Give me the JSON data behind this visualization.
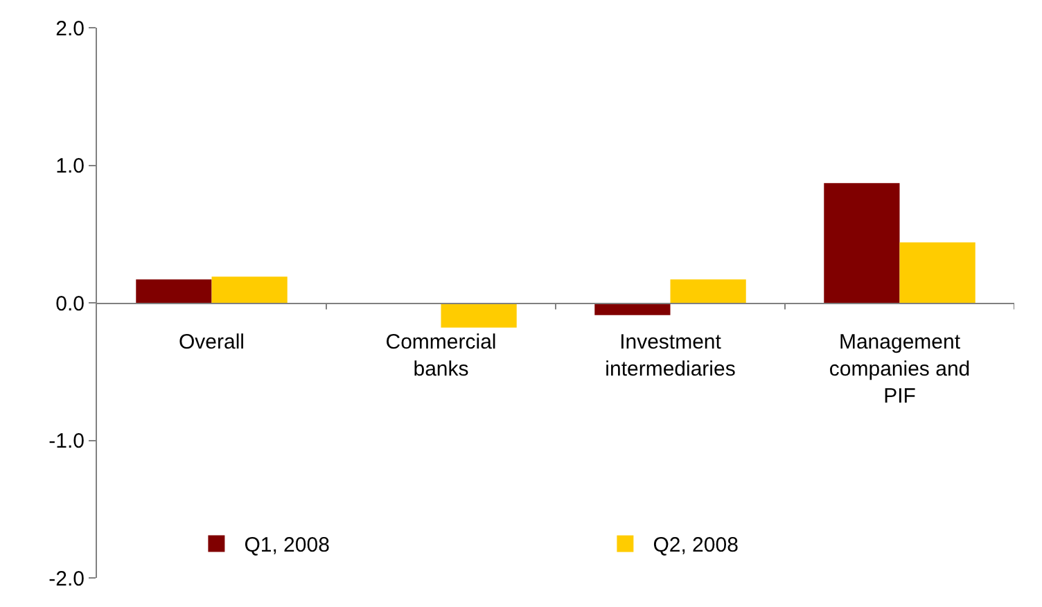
{
  "chart_data": {
    "type": "bar",
    "categories": [
      "Overall",
      "Commercial\nbanks",
      "Investment\nintermediaries",
      "Management\ncompanies and\nPIF"
    ],
    "series": [
      {
        "name": "Q1, 2008",
        "color": "#800000",
        "values": [
          0.17,
          0,
          -0.09,
          0.87
        ]
      },
      {
        "name": "Q2, 2008",
        "color": "#ffcc00",
        "values": [
          0.19,
          -0.18,
          0.17,
          0.44
        ]
      }
    ],
    "ylim": [
      -2,
      2
    ],
    "yticks": [
      {
        "value": -2,
        "label": "-2.0"
      },
      {
        "value": -1,
        "label": "-1.0"
      },
      {
        "value": 0,
        "label": "0.0"
      },
      {
        "value": 1,
        "label": "1.0"
      },
      {
        "value": 2,
        "label": "2.0"
      }
    ],
    "legend": "bottom left"
  }
}
